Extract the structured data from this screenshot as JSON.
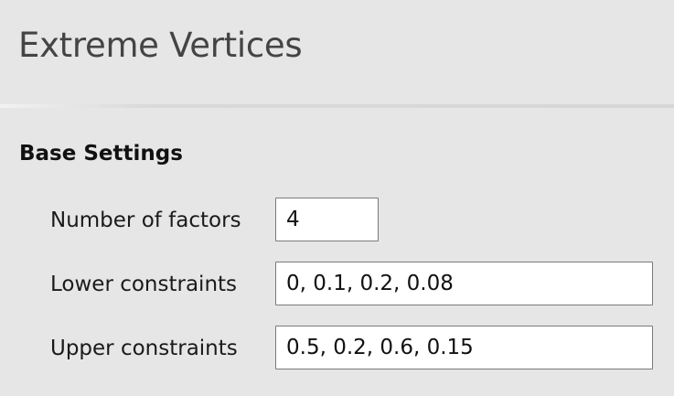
{
  "page": {
    "title": "Extreme Vertices"
  },
  "base_settings": {
    "heading": "Base Settings",
    "number_of_factors": {
      "label": "Number of factors",
      "value": "4"
    },
    "lower_constraints": {
      "label": "Lower constraints",
      "value": "0, 0.1, 0.2, 0.08"
    },
    "upper_constraints": {
      "label": "Upper constraints",
      "value": "0.5, 0.2, 0.6, 0.15"
    }
  }
}
